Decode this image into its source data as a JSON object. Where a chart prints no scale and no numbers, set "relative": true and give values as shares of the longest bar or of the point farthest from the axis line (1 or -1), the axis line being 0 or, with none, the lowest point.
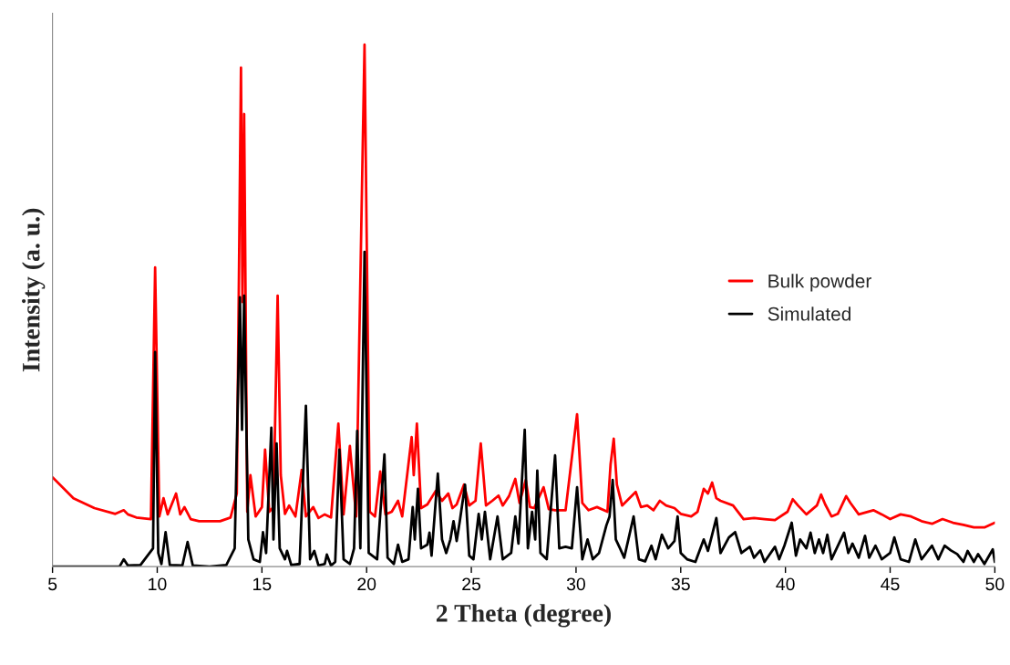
{
  "chart_data": {
    "type": "line",
    "relative": true,
    "xlabel": "2 Theta (degree)",
    "ylabel": "Intensity (a. u.)",
    "xlim": [
      5,
      50
    ],
    "xticks": [
      5,
      10,
      15,
      20,
      25,
      30,
      35,
      40,
      45,
      50
    ],
    "legend": "right",
    "grid": false,
    "marker": "none",
    "line_style": "solid",
    "series": [
      {
        "name": "Bulk powder",
        "color": "#ff0000",
        "x": [
          5,
          6,
          7,
          8,
          8.4,
          8.6,
          9,
          9.7,
          9.9,
          10.1,
          10.3,
          10.5,
          10.9,
          11.1,
          11.3,
          11.6,
          12,
          13,
          13.5,
          13.8,
          14.0,
          14.07,
          14.15,
          14.3,
          14.45,
          14.7,
          15.0,
          15.15,
          15.35,
          15.55,
          15.75,
          15.9,
          16.1,
          16.3,
          16.6,
          16.9,
          17.1,
          17.45,
          17.7,
          18.0,
          18.3,
          18.65,
          18.9,
          19.2,
          19.5,
          19.9,
          20.15,
          20.4,
          20.65,
          20.9,
          21.2,
          21.5,
          21.7,
          22.15,
          22.25,
          22.4,
          22.6,
          22.9,
          23.3,
          23.6,
          23.9,
          24.1,
          24.3,
          24.65,
          24.9,
          25.2,
          25.45,
          25.7,
          26.0,
          26.3,
          26.5,
          26.8,
          27.1,
          27.3,
          27.6,
          27.8,
          28.0,
          28.45,
          28.7,
          29.0,
          29.5,
          30.05,
          30.3,
          30.6,
          31.0,
          31.5,
          31.65,
          31.8,
          31.95,
          32.2,
          32.85,
          33.1,
          33.4,
          33.7,
          34.0,
          34.3,
          34.7,
          35.0,
          35.5,
          35.8,
          36.1,
          36.3,
          36.5,
          36.7,
          36.9,
          37.5,
          38.0,
          38.5,
          39.0,
          39.5,
          40.1,
          40.35,
          40.6,
          41.0,
          41.5,
          41.7,
          41.9,
          42.2,
          42.5,
          42.9,
          43.1,
          43.5,
          44.2,
          44.6,
          45.0,
          45.5,
          46.0,
          46.5,
          47.0,
          47.5,
          48.0,
          48.5,
          49.0,
          49.5,
          50.0
        ],
        "values": [
          0.171,
          0.131,
          0.112,
          0.101,
          0.108,
          0.1,
          0.094,
          0.091,
          0.573,
          0.096,
          0.131,
          0.1,
          0.14,
          0.1,
          0.114,
          0.091,
          0.087,
          0.087,
          0.094,
          0.14,
          0.956,
          0.507,
          0.867,
          0.105,
          0.175,
          0.096,
          0.114,
          0.224,
          0.105,
          0.114,
          0.519,
          0.175,
          0.101,
          0.117,
          0.096,
          0.185,
          0.096,
          0.114,
          0.093,
          0.1,
          0.094,
          0.274,
          0.1,
          0.231,
          0.096,
          1.0,
          0.105,
          0.096,
          0.182,
          0.1,
          0.105,
          0.126,
          0.096,
          0.248,
          0.175,
          0.274,
          0.112,
          0.119,
          0.145,
          0.126,
          0.14,
          0.112,
          0.119,
          0.157,
          0.117,
          0.126,
          0.236,
          0.117,
          0.126,
          0.136,
          0.117,
          0.135,
          0.168,
          0.122,
          0.166,
          0.114,
          0.112,
          0.152,
          0.11,
          0.108,
          0.108,
          0.292,
          0.122,
          0.108,
          0.114,
          0.105,
          0.196,
          0.245,
          0.157,
          0.117,
          0.143,
          0.114,
          0.117,
          0.108,
          0.126,
          0.117,
          0.112,
          0.101,
          0.096,
          0.105,
          0.149,
          0.14,
          0.161,
          0.131,
          0.126,
          0.117,
          0.091,
          0.093,
          0.091,
          0.089,
          0.105,
          0.129,
          0.117,
          0.1,
          0.117,
          0.138,
          0.119,
          0.096,
          0.101,
          0.135,
          0.122,
          0.1,
          0.108,
          0.1,
          0.091,
          0.1,
          0.096,
          0.087,
          0.082,
          0.091,
          0.084,
          0.08,
          0.075,
          0.075,
          0.084
        ]
      },
      {
        "name": "Simulated",
        "color": "#000000",
        "x": [
          5,
          8.2,
          8.4,
          8.6,
          9.2,
          9.8,
          9.9,
          10.05,
          10.2,
          10.4,
          10.6,
          11.2,
          11.45,
          11.7,
          12.5,
          13.3,
          13.7,
          13.95,
          14.05,
          14.15,
          14.35,
          14.6,
          14.9,
          15.05,
          15.2,
          15.45,
          15.55,
          15.7,
          15.85,
          16.1,
          16.2,
          16.4,
          16.8,
          17.1,
          17.3,
          17.5,
          17.7,
          18.0,
          18.1,
          18.3,
          18.5,
          18.7,
          18.9,
          19.2,
          19.4,
          19.55,
          19.7,
          19.9,
          20.1,
          20.5,
          20.85,
          21.0,
          21.3,
          21.5,
          21.7,
          22.0,
          22.2,
          22.3,
          22.45,
          22.6,
          22.9,
          23.0,
          23.1,
          23.4,
          23.6,
          23.8,
          24.0,
          24.15,
          24.3,
          24.45,
          24.7,
          24.9,
          25.1,
          25.35,
          25.5,
          25.65,
          25.9,
          26.25,
          26.5,
          26.9,
          27.1,
          27.25,
          27.55,
          27.7,
          27.9,
          28.05,
          28.15,
          28.3,
          28.6,
          29.0,
          29.2,
          29.5,
          29.8,
          30.05,
          30.3,
          30.55,
          30.8,
          31.1,
          31.45,
          31.6,
          31.75,
          31.9,
          32.1,
          32.3,
          32.75,
          33.0,
          33.3,
          33.6,
          33.8,
          34.1,
          34.4,
          34.7,
          34.85,
          35.0,
          35.3,
          35.7,
          36.1,
          36.3,
          36.5,
          36.7,
          36.9,
          37.3,
          37.6,
          37.9,
          38.3,
          38.5,
          38.8,
          39.0,
          39.5,
          39.7,
          39.95,
          40.3,
          40.5,
          40.7,
          41.0,
          41.2,
          41.4,
          41.6,
          41.8,
          42.0,
          42.2,
          42.8,
          43.0,
          43.2,
          43.5,
          43.8,
          44.0,
          44.3,
          44.6,
          45.0,
          45.2,
          45.5,
          45.9,
          46.2,
          46.5,
          47.0,
          47.3,
          47.6,
          47.9,
          48.2,
          48.5,
          48.7,
          49.0,
          49.2,
          49.5,
          49.9,
          50
        ],
        "values": [
          0,
          0,
          0.014,
          0.002,
          0.003,
          0.035,
          0.411,
          0.026,
          0.005,
          0.066,
          0.003,
          0.002,
          0.047,
          0.002,
          0,
          0.003,
          0.035,
          0.516,
          0.262,
          0.519,
          0.052,
          0.014,
          0.009,
          0.066,
          0.026,
          0.266,
          0.052,
          0.236,
          0.035,
          0.014,
          0.03,
          0.003,
          0.005,
          0.308,
          0.014,
          0.03,
          0.002,
          0.005,
          0.023,
          0.002,
          0.009,
          0.224,
          0.014,
          0.005,
          0.035,
          0.26,
          0.035,
          0.603,
          0.026,
          0.014,
          0.215,
          0.017,
          0.005,
          0.042,
          0.009,
          0.014,
          0.114,
          0.052,
          0.149,
          0.035,
          0.042,
          0.065,
          0.021,
          0.178,
          0.052,
          0.026,
          0.052,
          0.087,
          0.049,
          0.087,
          0.157,
          0.021,
          0.014,
          0.101,
          0.052,
          0.105,
          0.014,
          0.096,
          0.014,
          0.026,
          0.096,
          0.044,
          0.262,
          0.035,
          0.105,
          0.052,
          0.184,
          0.026,
          0.014,
          0.213,
          0.035,
          0.038,
          0.035,
          0.152,
          0.014,
          0.052,
          0.014,
          0.026,
          0.079,
          0.096,
          0.166,
          0.052,
          0.035,
          0.017,
          0.096,
          0.014,
          0.01,
          0.04,
          0.014,
          0.061,
          0.035,
          0.049,
          0.096,
          0.026,
          0.014,
          0.009,
          0.052,
          0.03,
          0.061,
          0.093,
          0.026,
          0.056,
          0.066,
          0.026,
          0.038,
          0.017,
          0.031,
          0.009,
          0.038,
          0.014,
          0.04,
          0.084,
          0.021,
          0.052,
          0.035,
          0.065,
          0.026,
          0.052,
          0.026,
          0.061,
          0.014,
          0.065,
          0.026,
          0.044,
          0.017,
          0.059,
          0.017,
          0.04,
          0.014,
          0.026,
          0.056,
          0.014,
          0.009,
          0.052,
          0.014,
          0.04,
          0.014,
          0.04,
          0.031,
          0.024,
          0.009,
          0.03,
          0.009,
          0.024,
          0.005,
          0.033,
          0.009
        ]
      }
    ]
  }
}
